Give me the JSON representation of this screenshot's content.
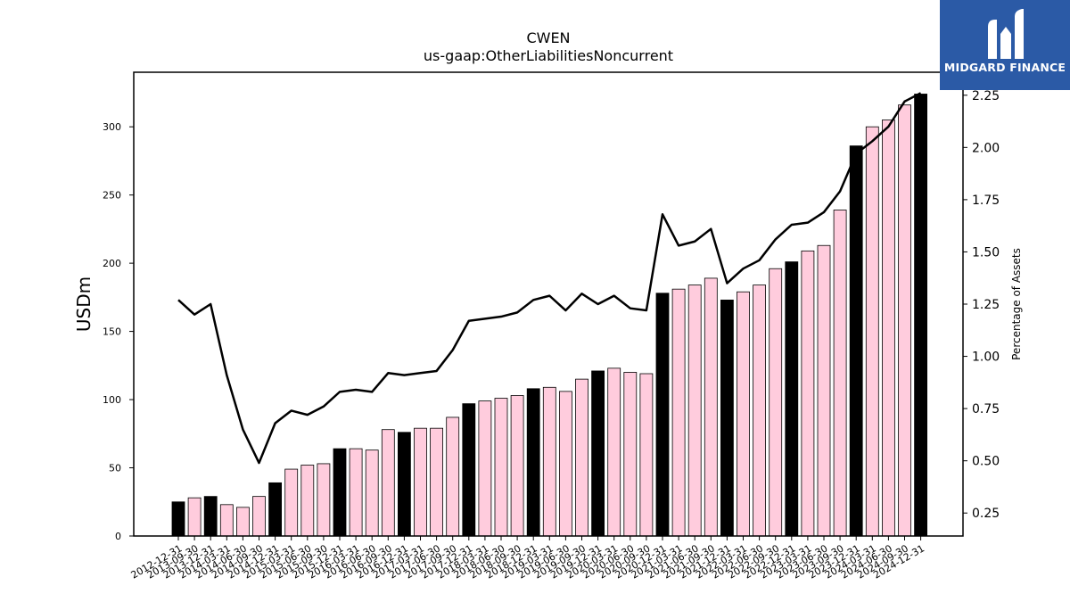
{
  "chart_data": {
    "type": "bar",
    "title": "CWEN",
    "subtitle": "us-gaap:OtherLiabilitiesNoncurrent",
    "ylabel": "USDm",
    "ylabel_right": "Percentage of Assets",
    "ylim": [
      0,
      340
    ],
    "ylim_right": [
      0.14,
      2.36
    ],
    "yticks": [
      0,
      50,
      100,
      150,
      200,
      250,
      300
    ],
    "yticks_right": [
      0.25,
      0.5,
      0.75,
      1.0,
      1.25,
      1.5,
      1.75,
      2.0,
      2.25
    ],
    "colors": {
      "annual_bar": "#000000",
      "quarter_bar": "#ffccdd",
      "line": "#000000"
    },
    "categories": [
      "2012-12-31",
      "2013-09-30",
      "2013-12-31",
      "2014-03-31",
      "2014-06-30",
      "2014-09-30",
      "2014-12-31",
      "2015-03-31",
      "2015-06-30",
      "2015-09-30",
      "2015-12-31",
      "2016-03-31",
      "2016-06-30",
      "2016-09-30",
      "2016-12-31",
      "2017-03-31",
      "2017-06-30",
      "2017-09-30",
      "2017-12-31",
      "2018-03-31",
      "2018-06-30",
      "2018-09-30",
      "2018-12-31",
      "2019-03-31",
      "2019-06-30",
      "2019-09-30",
      "2019-12-31",
      "2020-03-31",
      "2020-06-30",
      "2020-09-30",
      "2020-12-31",
      "2021-03-31",
      "2021-06-30",
      "2021-09-30",
      "2021-12-31",
      "2022-03-31",
      "2022-06-30",
      "2022-09-30",
      "2022-12-31",
      "2023-03-31",
      "2023-06-30",
      "2023-09-30",
      "2023-12-31",
      "2024-03-31",
      "2024-06-30",
      "2024-09-30",
      "2024-12-31"
    ],
    "xtick_labels": [
      "2012-12-31",
      "2013-09-30",
      "2013-12-31",
      "2014-03-31",
      "2014-06-30",
      "2014-09-30",
      "2014-12-31",
      "2015-03-31",
      "2015-06-30",
      "2015-09-30",
      "2015-12-31",
      "2016-03-31",
      "2016-06-30",
      "2016-09-30",
      "2016-12-31",
      "2017-03-31",
      "2017-06-30",
      "2017-09-30",
      "2017-12-31",
      "2018-03-31",
      "2018-06-30",
      "2018-09-30",
      "2018-12-31",
      "2019-03-31",
      "2019-06-30",
      "2019-09-30",
      "2019-12-31",
      "2020-03-31",
      "2020-06-30",
      "2020-09-30",
      "2020-12-31",
      "2021-03-31",
      "2021-06-30",
      "2021-09-30",
      "2021-12-31",
      "2022-03-31",
      "2022-06-30",
      "2022-09-30",
      "2022-12-31",
      "2023-03-31",
      "2023-06-30",
      "2023-09-30",
      "2023-12-31",
      "2024-03-31",
      "2024-06-30",
      "2024-09-30",
      "2024-12-31"
    ],
    "series": [
      {
        "kind": "bar",
        "values": [
          25,
          28,
          29,
          23,
          21,
          29,
          39,
          49,
          52,
          53,
          64,
          64,
          63,
          78,
          76,
          79,
          79,
          87,
          97,
          99,
          101,
          103,
          108,
          109,
          106,
          115,
          121,
          123,
          120,
          119,
          178,
          181,
          184,
          189,
          173,
          179,
          184,
          196,
          201,
          209,
          213,
          239,
          286,
          300,
          305,
          316,
          324
        ],
        "annual": [
          true,
          false,
          true,
          false,
          false,
          false,
          true,
          false,
          false,
          false,
          true,
          false,
          false,
          false,
          true,
          false,
          false,
          false,
          true,
          false,
          false,
          false,
          true,
          false,
          false,
          false,
          true,
          false,
          false,
          false,
          true,
          false,
          false,
          false,
          true,
          false,
          false,
          false,
          true,
          false,
          false,
          false,
          true,
          false,
          false,
          false,
          true
        ]
      },
      {
        "kind": "line",
        "axis": "right",
        "values": [
          1.27,
          1.2,
          1.25,
          0.91,
          0.65,
          0.49,
          0.68,
          0.74,
          0.72,
          0.76,
          0.83,
          0.84,
          0.83,
          0.92,
          0.91,
          0.92,
          0.93,
          1.03,
          1.17,
          1.18,
          1.19,
          1.21,
          1.27,
          1.29,
          1.22,
          1.3,
          1.25,
          1.29,
          1.23,
          1.22,
          1.68,
          1.53,
          1.55,
          1.61,
          1.35,
          1.42,
          1.46,
          1.56,
          1.63,
          1.64,
          1.69,
          1.79,
          1.97,
          2.03,
          2.1,
          2.22,
          2.26
        ]
      }
    ]
  },
  "logo": {
    "text": "MIDGARD FINANCE",
    "icon": "midgard-logo-icon"
  }
}
